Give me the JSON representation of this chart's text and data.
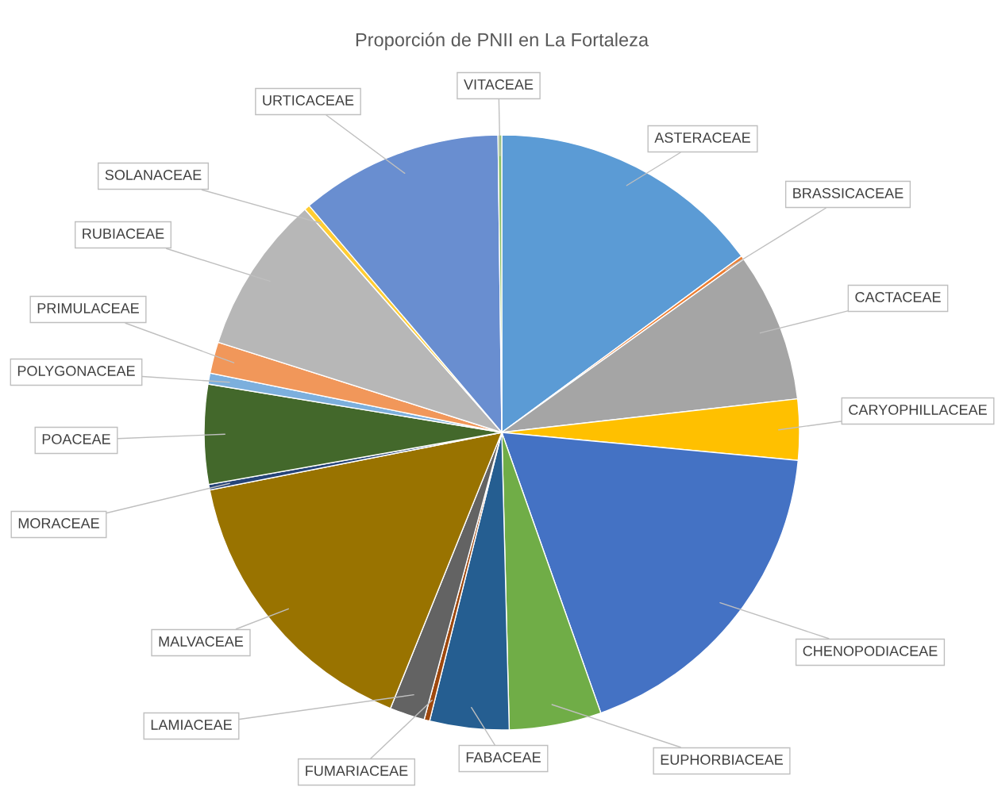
{
  "chart_data": {
    "type": "pie",
    "title": "Proporción de PNII en La Fortaleza",
    "categories": [
      "ASTERACEAE",
      "BRASSICACEAE",
      "CACTACEAE",
      "CARYOPHILLACEAE",
      "CHENOPODIACEAE",
      "EUPHORBIACEAE",
      "FABACEAE",
      "FUMARIACEAE",
      "LAMIACEAE",
      "MALVACEAE",
      "MORACEAE",
      "POACEAE",
      "POLYGONACEAE",
      "PRIMULACEAE",
      "RUBIACEAE",
      "SOLANACEAE",
      "URTICACEAE",
      "VITACEAE"
    ],
    "values": [
      14.9,
      0.2,
      8.1,
      3.3,
      18.1,
      5.0,
      4.3,
      0.3,
      1.9,
      15.8,
      0.3,
      5.4,
      0.6,
      1.7,
      8.6,
      0.3,
      11.0,
      0.2
    ],
    "colors": [
      "#5b9bd5",
      "#ed7d31",
      "#a5a5a5",
      "#ffc000",
      "#4472c4",
      "#70ad47",
      "#255e91",
      "#9e480e",
      "#636363",
      "#997300",
      "#264478",
      "#43682b",
      "#7cafdd",
      "#f1975a",
      "#b7b7b7",
      "#ffcd33",
      "#698ed0",
      "#8cc168"
    ],
    "legend": false
  }
}
